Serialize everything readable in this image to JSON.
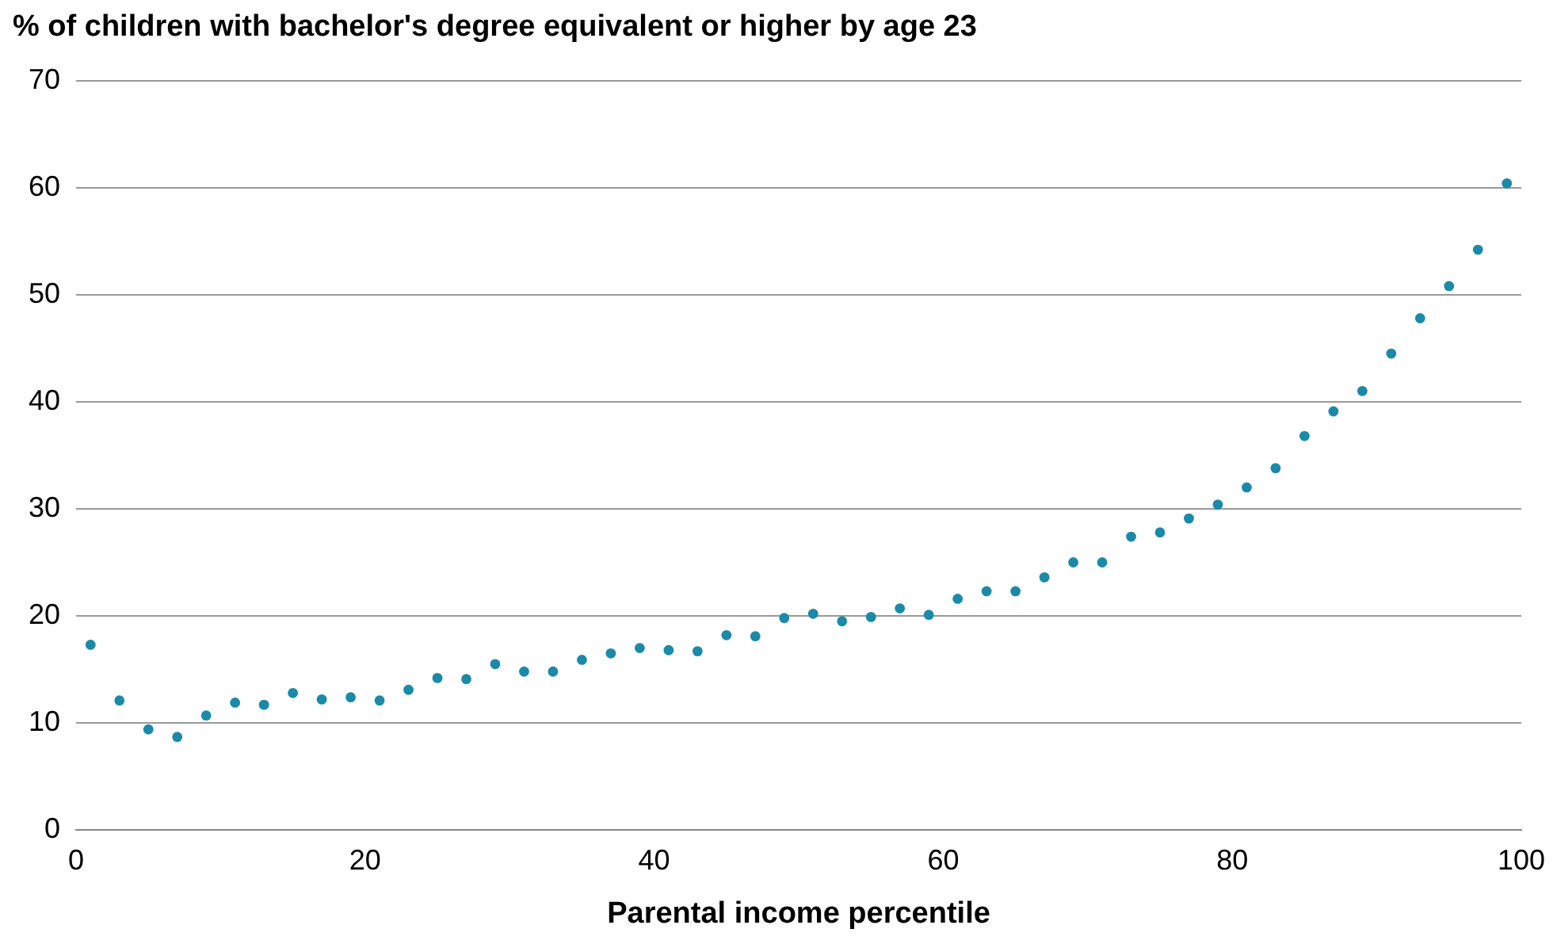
{
  "chart_data": {
    "type": "scatter",
    "title": "% of children with bachelor's degree equivalent or higher by age 23",
    "xlabel": "Parental income percentile",
    "x": [
      1,
      3,
      5,
      7,
      9,
      11,
      13,
      15,
      17,
      19,
      21,
      23,
      25,
      27,
      29,
      31,
      33,
      35,
      37,
      39,
      41,
      43,
      45,
      47,
      49,
      51,
      53,
      55,
      57,
      59,
      61,
      63,
      65,
      67,
      69,
      71,
      73,
      75,
      77,
      79,
      81,
      83,
      85,
      87,
      89,
      91,
      93,
      95,
      97,
      99
    ],
    "series": [
      {
        "color": "#1a8aa8",
        "values": [
          17.3,
          12.1,
          9.4,
          8.7,
          10.7,
          11.9,
          11.7,
          12.8,
          12.2,
          12.4,
          12.1,
          13.1,
          14.2,
          14.1,
          15.5,
          14.8,
          14.8,
          15.9,
          16.5,
          17.0,
          16.8,
          16.7,
          18.2,
          18.1,
          19.8,
          20.2,
          19.5,
          19.9,
          20.7,
          20.1,
          21.6,
          22.3,
          22.3,
          23.6,
          25.0,
          25.0,
          27.4,
          27.8,
          29.1,
          30.4,
          32.0,
          33.8,
          36.8,
          39.1,
          41.0,
          44.5,
          47.8,
          50.8,
          54.2,
          60.4
        ]
      }
    ],
    "xlim": [
      0,
      100
    ],
    "xticks": [
      0,
      20,
      40,
      60,
      80,
      100
    ],
    "ylim": [
      0,
      70
    ],
    "yticks": [
      0,
      10,
      20,
      30,
      40,
      50,
      60,
      70
    ],
    "grid": "y",
    "marker": "circle",
    "legend": false
  }
}
